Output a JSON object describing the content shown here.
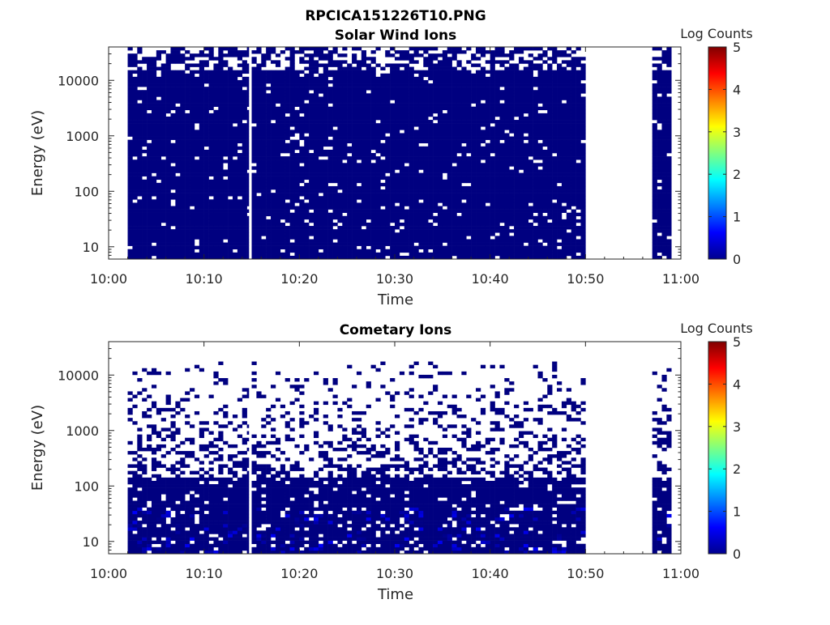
{
  "figure_title": "RPCICA151226T10.PNG",
  "chart_data": [
    {
      "type": "heatmap",
      "title": "Solar Wind Ions",
      "xlabel": "Time",
      "ylabel": "Energy (eV)",
      "xlim": [
        "10:00",
        "11:00"
      ],
      "x_ticks": [
        "10:00",
        "10:10",
        "10:20",
        "10:30",
        "10:40",
        "10:50",
        "11:00"
      ],
      "ylim": [
        6,
        40000
      ],
      "yscale": "log",
      "y_ticks": [
        "10",
        "100",
        "1000",
        "10000"
      ],
      "colorbar": {
        "label": "Log Counts",
        "range": [
          0,
          5
        ],
        "ticks": [
          "0",
          "1",
          "2",
          "3",
          "4",
          "5"
        ],
        "colormap": "jet"
      },
      "data_intervals": [
        [
          "10:02",
          "10:14.7"
        ],
        [
          "10:15",
          "10:50"
        ],
        [
          "10:57",
          "10:59"
        ]
      ],
      "typical_log_counts": 0,
      "upper_energy_edge_eV": 40000,
      "sparse_from_eV": 15000
    },
    {
      "type": "heatmap",
      "title": "Cometary Ions",
      "xlabel": "Time",
      "ylabel": "Energy (eV)",
      "xlim": [
        "10:00",
        "11:00"
      ],
      "x_ticks": [
        "10:00",
        "10:10",
        "10:20",
        "10:30",
        "10:40",
        "10:50",
        "11:00"
      ],
      "ylim": [
        6,
        40000
      ],
      "yscale": "log",
      "y_ticks": [
        "10",
        "100",
        "1000",
        "10000"
      ],
      "colorbar": {
        "label": "Log Counts",
        "range": [
          0,
          5
        ],
        "ticks": [
          "0",
          "1",
          "2",
          "3",
          "4",
          "5"
        ],
        "colormap": "jet"
      },
      "data_intervals": [
        [
          "10:02",
          "10:11.5"
        ],
        [
          "10:11.5",
          "10:14.7"
        ],
        [
          "10:15",
          "10:50"
        ],
        [
          "10:57",
          "10:59"
        ]
      ],
      "typical_log_counts": 0,
      "peak_log_counts": 0.6,
      "dense_below_eV": 150,
      "sparse_up_to_eV": 17000
    }
  ]
}
